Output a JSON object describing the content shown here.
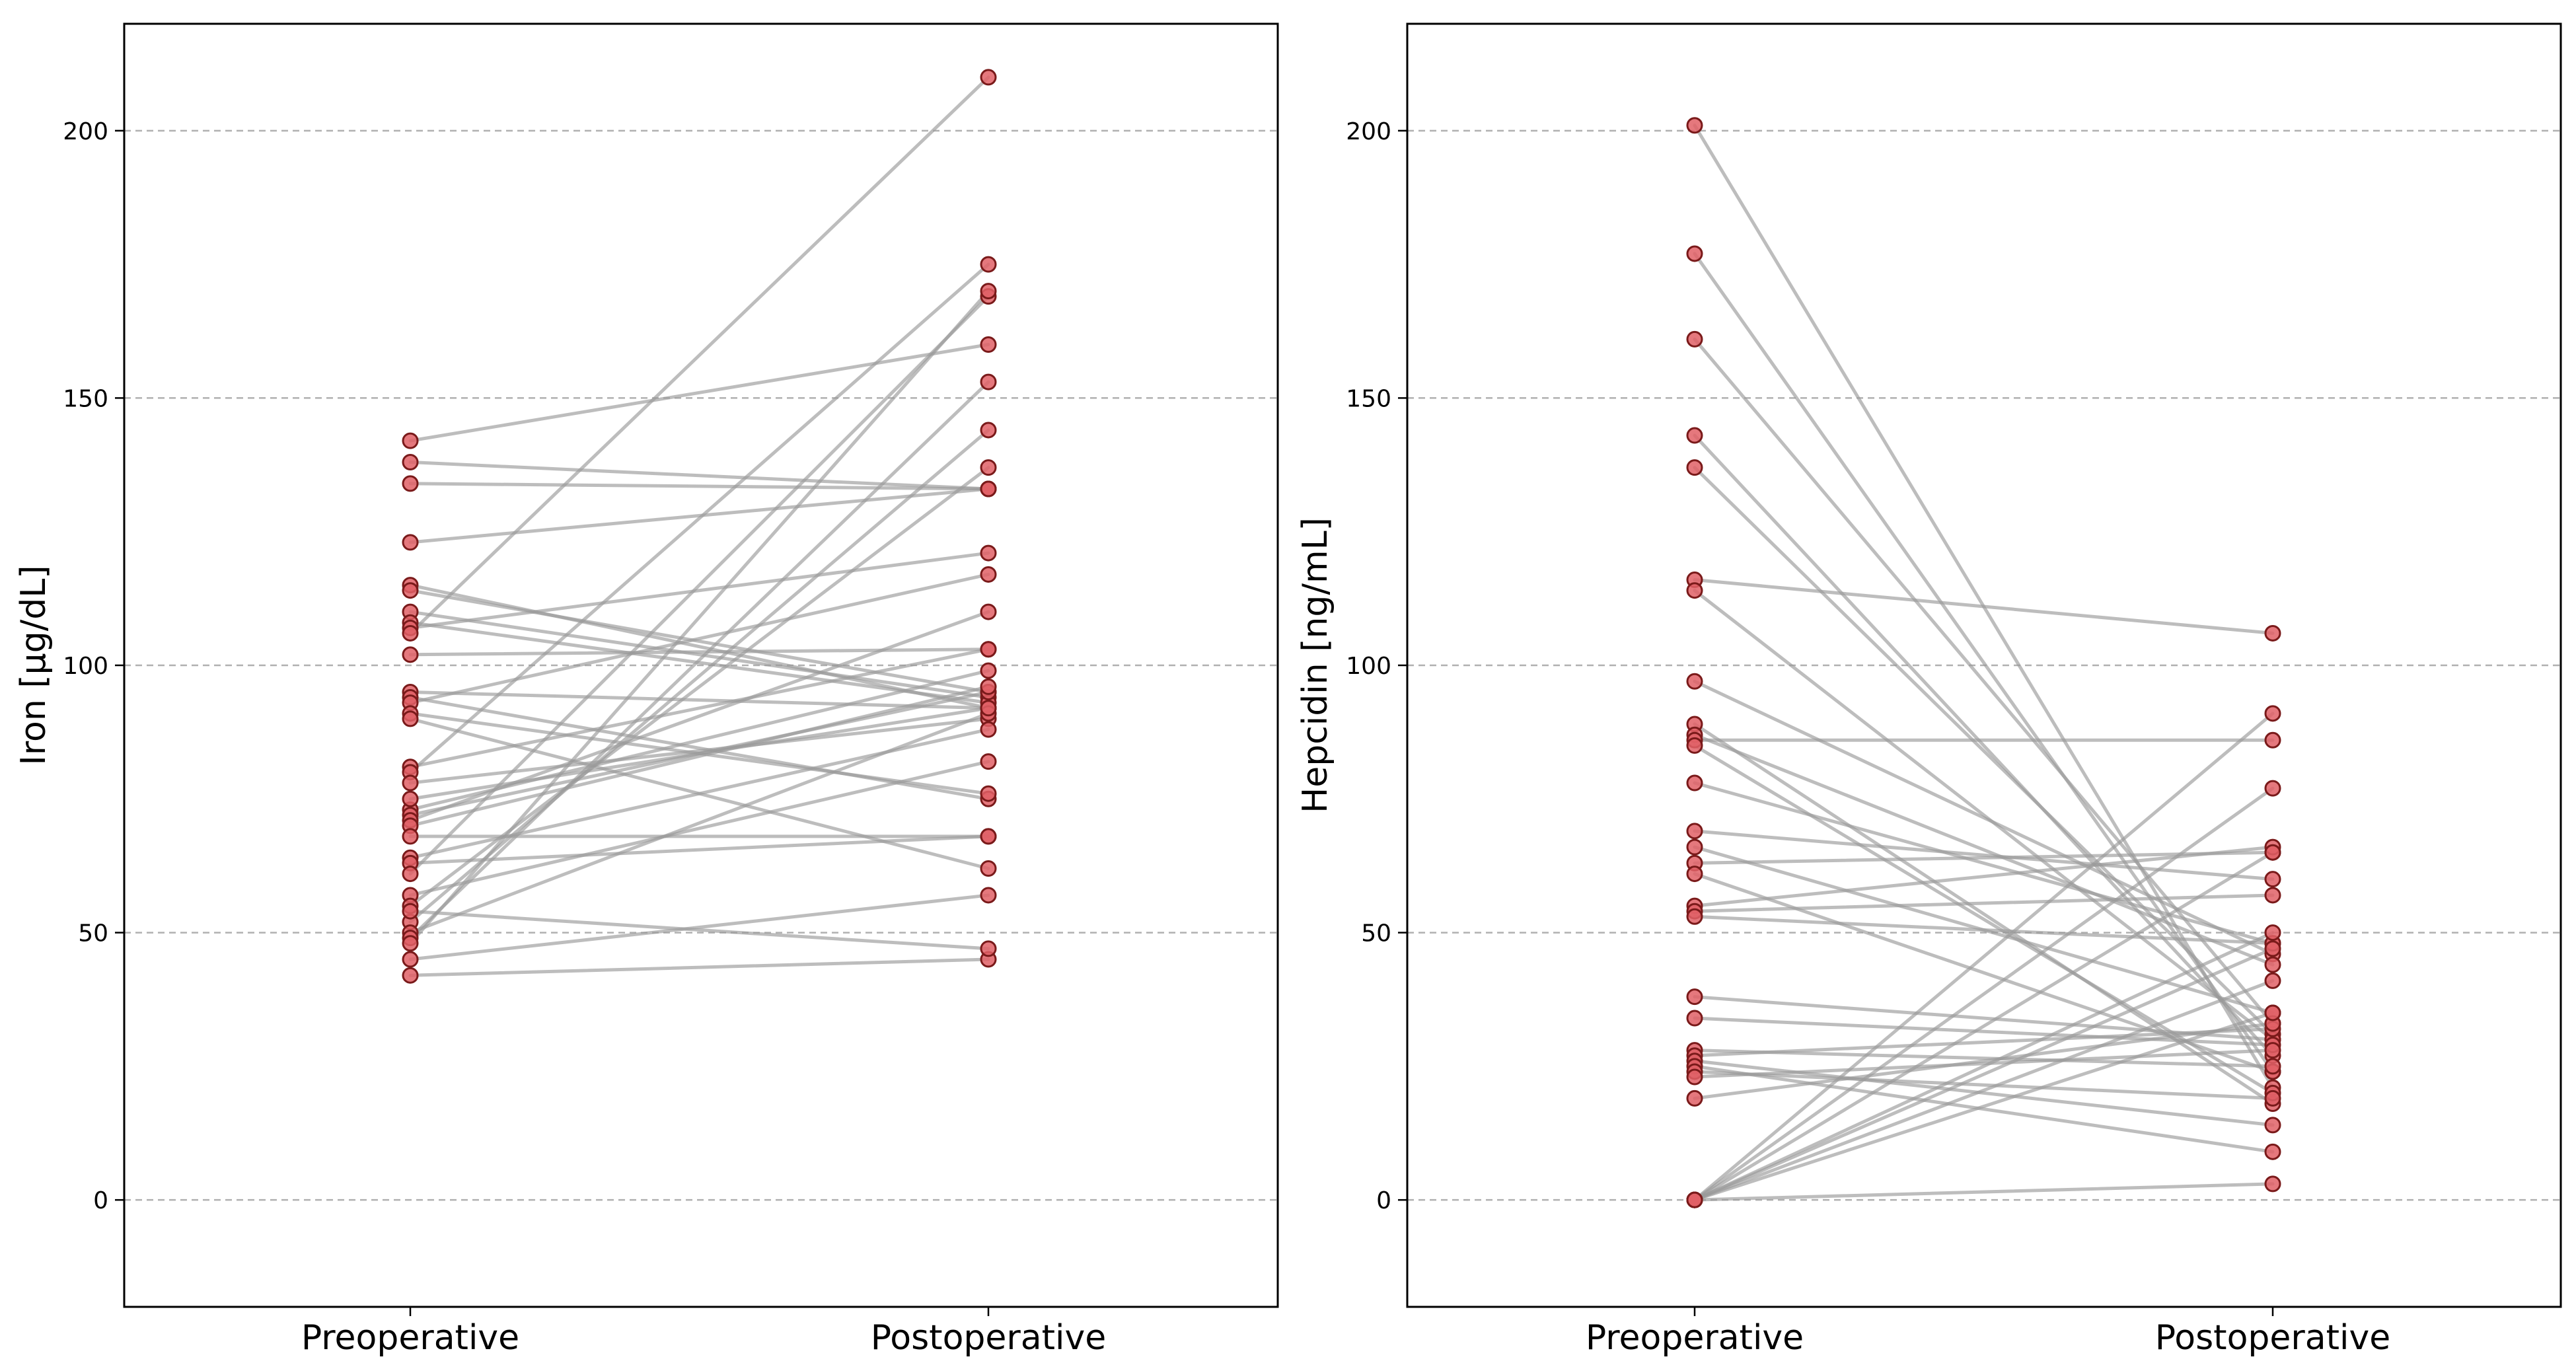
{
  "chart_data": [
    {
      "type": "slope",
      "title": "",
      "xlabel": "",
      "ylabel": "Iron [µg/dL]",
      "categories": [
        "Preoperative",
        "Postoperative"
      ],
      "ylim": [
        -20,
        220
      ],
      "yticks": [
        0,
        50,
        100,
        150,
        200
      ],
      "grid": "horizontal dashed",
      "line_color": "#9a9a9a",
      "marker_color": "#e06066",
      "marker_edge": "#7a1a1a",
      "pairs": [
        [
          142,
          160
        ],
        [
          138,
          133
        ],
        [
          134,
          133
        ],
        [
          123,
          133
        ],
        [
          115,
          92
        ],
        [
          114,
          95
        ],
        [
          110,
          94
        ],
        [
          108,
          93
        ],
        [
          107,
          121
        ],
        [
          106,
          210
        ],
        [
          102,
          103
        ],
        [
          95,
          92
        ],
        [
          94,
          75
        ],
        [
          93,
          117
        ],
        [
          91,
          76
        ],
        [
          90,
          62
        ],
        [
          81,
          103
        ],
        [
          80,
          175
        ],
        [
          78,
          90
        ],
        [
          73,
          99
        ],
        [
          72,
          95
        ],
        [
          71,
          110
        ],
        [
          70,
          96
        ],
        [
          64,
          88
        ],
        [
          63,
          68
        ],
        [
          61,
          169
        ],
        [
          57,
          82
        ],
        [
          55,
          137
        ],
        [
          52,
          144
        ],
        [
          50,
          91
        ],
        [
          49,
          153
        ],
        [
          48,
          170
        ],
        [
          45,
          57
        ],
        [
          42,
          45
        ],
        [
          68,
          68
        ],
        [
          75,
          92
        ],
        [
          54,
          47
        ]
      ]
    },
    {
      "type": "slope",
      "title": "",
      "xlabel": "",
      "ylabel": "Hepcidin [ng/mL]",
      "categories": [
        "Preoperative",
        "Postoperative"
      ],
      "ylim": [
        -20,
        220
      ],
      "yticks": [
        0,
        50,
        100,
        150,
        200
      ],
      "grid": "horizontal dashed",
      "line_color": "#9a9a9a",
      "marker_color": "#e06066",
      "marker_edge": "#7a1a1a",
      "pairs": [
        [
          201,
          21
        ],
        [
          177,
          24
        ],
        [
          161,
          33
        ],
        [
          143,
          27
        ],
        [
          137,
          31
        ],
        [
          116,
          106
        ],
        [
          114,
          30
        ],
        [
          97,
          46
        ],
        [
          89,
          18
        ],
        [
          87,
          44
        ],
        [
          86,
          86
        ],
        [
          85,
          20
        ],
        [
          78,
          48
        ],
        [
          69,
          60
        ],
        [
          66,
          35
        ],
        [
          63,
          65
        ],
        [
          61,
          24
        ],
        [
          55,
          66
        ],
        [
          54,
          57
        ],
        [
          53,
          48
        ],
        [
          38,
          30
        ],
        [
          34,
          29
        ],
        [
          28,
          25
        ],
        [
          27,
          32
        ],
        [
          26,
          14
        ],
        [
          25,
          9
        ],
        [
          24,
          19
        ],
        [
          23,
          28
        ],
        [
          19,
          33
        ],
        [
          0,
          91
        ],
        [
          0,
          77
        ],
        [
          0,
          65
        ],
        [
          0,
          50
        ],
        [
          0,
          47
        ],
        [
          0,
          41
        ],
        [
          0,
          3
        ],
        [
          0,
          35
        ]
      ]
    }
  ]
}
